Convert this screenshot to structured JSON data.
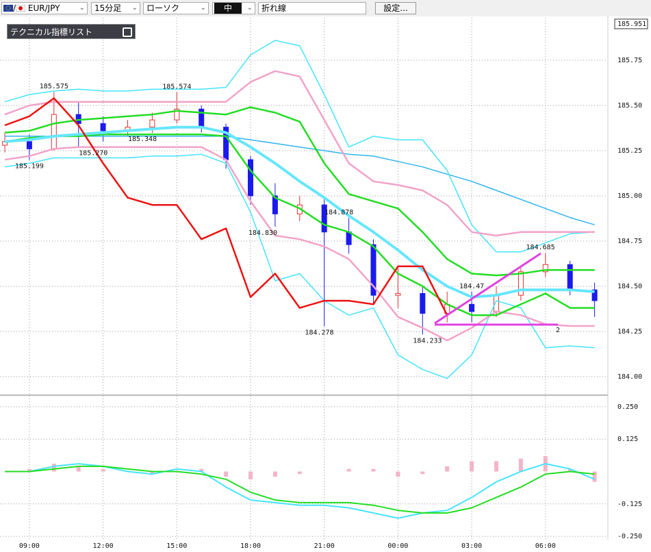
{
  "toolbar": {
    "flag_separator": "/",
    "pair": "EUR/JPY",
    "timeframe": "15分足",
    "chart_style": "ローソク",
    "tool_icon": "中",
    "drawing_tool": "折れ線",
    "settings": "設定..."
  },
  "indicator_panel": "テクニカル指標リスト",
  "trendline_label": "2",
  "chart_data": [
    {
      "type": "candlestick",
      "categories": [
        null,
        "09:00",
        null,
        null,
        "12:00",
        null,
        null,
        "15:00",
        null,
        null,
        "18:00",
        null,
        null,
        "21:00",
        null,
        null,
        "00:00",
        null,
        null,
        "03:00",
        null,
        null,
        "06:00",
        null,
        null
      ],
      "open": [
        185.28,
        185.3,
        185.26,
        185.45,
        185.4,
        185.36,
        185.38,
        185.42,
        185.48,
        185.38,
        185.2,
        185.0,
        184.9,
        184.95,
        184.8,
        184.73,
        184.45,
        184.46,
        184.35,
        184.4,
        184.36,
        184.45,
        184.58,
        184.62,
        184.48
      ],
      "high": [
        185.35,
        185.34,
        185.575,
        185.52,
        185.44,
        185.42,
        185.46,
        185.574,
        185.5,
        185.4,
        185.22,
        185.07,
        185.0,
        184.98,
        184.878,
        184.76,
        184.6,
        184.5,
        184.47,
        184.47,
        184.5,
        184.6,
        184.685,
        184.64,
        184.52
      ],
      "low": [
        185.24,
        185.199,
        185.25,
        185.27,
        185.3,
        185.33,
        185.348,
        185.4,
        185.35,
        185.15,
        184.95,
        184.83,
        184.86,
        184.278,
        184.68,
        184.4,
        184.38,
        184.233,
        184.3,
        184.3,
        184.33,
        184.42,
        184.55,
        184.45,
        184.33
      ],
      "close": [
        185.3,
        185.26,
        185.45,
        185.4,
        185.36,
        185.38,
        185.42,
        185.48,
        185.38,
        185.2,
        185.0,
        184.9,
        184.95,
        184.8,
        184.73,
        184.45,
        184.46,
        184.35,
        184.4,
        184.36,
        184.45,
        184.58,
        184.62,
        184.48,
        184.42
      ],
      "up_color": "#e03030",
      "down_color": "#1a1aee",
      "series": [
        {
          "color": "#30b4f0",
          "width": 1.5,
          "values": [
            185.33,
            185.33,
            185.33,
            185.33,
            185.33,
            185.33,
            185.33,
            185.33,
            185.33,
            185.33,
            185.31,
            185.29,
            185.27,
            185.25,
            185.23,
            185.22,
            185.19,
            185.16,
            185.12,
            185.08,
            185.03,
            184.98,
            184.93,
            184.88,
            184.84
          ]
        },
        {
          "color": "#44e4ff",
          "width": 1.5,
          "values": [
            185.52,
            185.56,
            185.58,
            185.59,
            185.58,
            185.58,
            185.59,
            185.59,
            185.59,
            185.6,
            185.78,
            185.86,
            185.83,
            185.56,
            185.27,
            185.33,
            185.31,
            185.31,
            185.14,
            184.84,
            184.69,
            184.69,
            184.74,
            184.79,
            184.8
          ]
        },
        {
          "color": "#44e4ff",
          "width": 1.5,
          "values": [
            185.16,
            185.18,
            185.21,
            185.21,
            185.21,
            185.21,
            185.22,
            185.22,
            185.23,
            185.18,
            184.91,
            184.53,
            184.57,
            184.42,
            184.34,
            184.38,
            184.12,
            184.04,
            183.99,
            184.12,
            184.42,
            184.38,
            184.16,
            184.17,
            184.16
          ]
        },
        {
          "color": "#f2a2c8",
          "width": 2.5,
          "values": [
            185.45,
            185.5,
            185.52,
            185.52,
            185.52,
            185.52,
            185.52,
            185.52,
            185.52,
            185.52,
            185.63,
            185.69,
            185.66,
            185.42,
            185.18,
            185.08,
            185.06,
            185.03,
            184.95,
            184.8,
            184.78,
            184.8,
            184.8,
            184.8,
            184.8
          ]
        },
        {
          "color": "#f2a2c8",
          "width": 2.5,
          "values": [
            185.2,
            185.22,
            185.26,
            185.27,
            185.27,
            185.27,
            185.27,
            185.27,
            185.27,
            185.2,
            184.97,
            184.78,
            184.76,
            184.72,
            184.65,
            184.5,
            184.33,
            184.27,
            184.2,
            184.27,
            184.36,
            184.34,
            184.29,
            184.28,
            184.28
          ]
        },
        {
          "color": "#22dd22",
          "width": 2.5,
          "values": [
            185.35,
            185.36,
            185.4,
            185.42,
            185.43,
            185.44,
            185.45,
            185.47,
            185.46,
            185.45,
            185.49,
            185.46,
            185.41,
            185.18,
            185.01,
            184.97,
            184.93,
            184.8,
            184.65,
            184.57,
            184.56,
            184.57,
            184.59,
            184.59,
            184.59
          ]
        },
        {
          "color": "#22dd22",
          "width": 2.5,
          "values": [
            185.3,
            185.32,
            185.33,
            185.33,
            185.34,
            185.34,
            185.34,
            185.34,
            185.34,
            185.33,
            185.14,
            184.99,
            184.93,
            184.84,
            184.8,
            184.72,
            184.57,
            184.5,
            184.4,
            184.34,
            184.34,
            184.4,
            184.46,
            184.38,
            184.38
          ]
        },
        {
          "color": "#66e6ff",
          "width": 4,
          "values": [
            185.3,
            185.31,
            185.33,
            185.34,
            185.35,
            185.36,
            185.37,
            185.38,
            185.38,
            185.35,
            185.27,
            185.18,
            185.08,
            184.99,
            184.89,
            184.8,
            184.7,
            184.59,
            184.5,
            184.44,
            184.45,
            184.48,
            184.48,
            184.48,
            184.47
          ]
        },
        {
          "color": "#ee1111",
          "width": 2.5,
          "values": [
            185.39,
            185.44,
            185.54,
            185.39,
            185.18,
            184.99,
            184.95,
            184.95,
            184.76,
            184.82,
            184.44,
            184.57,
            184.38,
            184.42,
            184.42,
            184.4,
            184.61,
            184.61,
            184.34,
            null,
            null,
            null,
            null,
            null,
            null
          ]
        }
      ],
      "annotations": [
        {
          "x": 2,
          "value": 185.575
        },
        {
          "x": 7,
          "value": 185.574
        },
        {
          "x": 1,
          "value": 185.199
        },
        {
          "x": 3.6,
          "value": 185.27,
          "label": "185.270"
        },
        {
          "x": 5.6,
          "value": 185.348
        },
        {
          "x": 10.5,
          "value": 184.83,
          "label": "184.830"
        },
        {
          "x": 13.6,
          "value": 184.878
        },
        {
          "x": 12.8,
          "value": 184.278
        },
        {
          "x": 17.2,
          "value": 184.233
        },
        {
          "x": 19,
          "value": 184.47
        },
        {
          "x": 21.8,
          "value": 184.685
        }
      ],
      "price_marker": 185.951,
      "ylim": [
        183.905,
        186.0
      ],
      "yticks": [
        185.75,
        {
          "value": 185.5,
          "label": "185.50"
        },
        185.25,
        {
          "value": 185.0,
          "label": "185.00"
        },
        184.75,
        {
          "value": 184.5,
          "label": "184.50"
        },
        184.25,
        {
          "value": 184.0,
          "label": "184.00"
        }
      ],
      "grid": true
    },
    {
      "type": "macd",
      "values": [
        0.0,
        0.01,
        0.03,
        0.02,
        0.01,
        0.0,
        -0.01,
        0.0,
        0.01,
        -0.02,
        -0.03,
        -0.02,
        -0.01,
        0.0,
        0.01,
        0.01,
        -0.02,
        -0.01,
        0.02,
        0.04,
        0.04,
        0.05,
        0.06,
        0.01,
        -0.04
      ],
      "color": "#f4b4c8",
      "series": [
        {
          "color": "#44e4ff",
          "width": 2,
          "values": [
            0.0,
            0.0,
            0.02,
            0.03,
            0.02,
            0.0,
            -0.01,
            0.01,
            0.0,
            -0.06,
            -0.11,
            -0.12,
            -0.13,
            -0.13,
            -0.14,
            -0.16,
            -0.18,
            -0.16,
            -0.15,
            -0.1,
            -0.04,
            0.0,
            0.03,
            0.01,
            -0.03
          ]
        },
        {
          "color": "#22dd22",
          "width": 2,
          "values": [
            0.0,
            0.0,
            0.01,
            0.02,
            0.02,
            0.01,
            0.0,
            0.0,
            -0.01,
            -0.03,
            -0.08,
            -0.11,
            -0.12,
            -0.12,
            -0.12,
            -0.13,
            -0.15,
            -0.16,
            -0.16,
            -0.14,
            -0.1,
            -0.06,
            -0.01,
            0.0,
            -0.01
          ]
        }
      ],
      "ylim": [
        -0.263,
        0.292
      ],
      "yticks": [
        {
          "value": 0.25,
          "label": "0.250"
        },
        0.125,
        -0.125,
        {
          "value": -0.25,
          "label": "-0.250"
        }
      ],
      "grid": true
    }
  ]
}
